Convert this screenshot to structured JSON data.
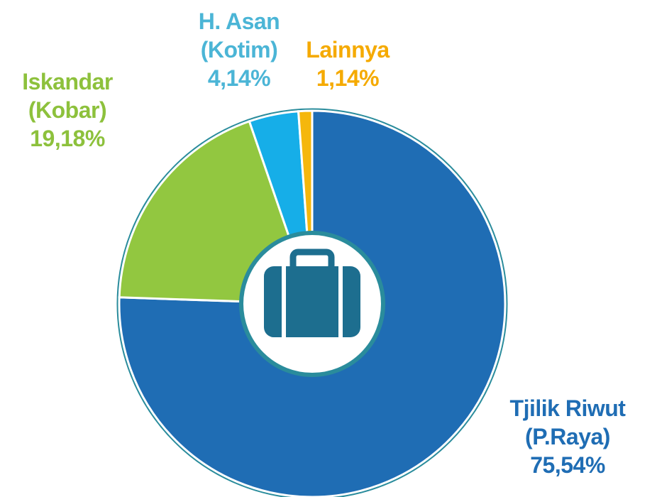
{
  "chart_data": {
    "type": "pie",
    "categories": [
      "Tjilik Riwut (P.Raya)",
      "Iskandar (Kobar)",
      "H. Asan (Kotim)",
      "Lainnya"
    ],
    "values": [
      75.54,
      19.18,
      4.14,
      1.14
    ],
    "value_labels": [
      "75,54%",
      "19,18%",
      "4,14%",
      "1,14%"
    ],
    "colors": [
      "#1f6db4",
      "#92c740",
      "#16aee8",
      "#f5b70c"
    ],
    "label_colors": [
      "#1f6db4",
      "#8dc13c",
      "#4bb5d6",
      "#f5aa00"
    ]
  }
}
